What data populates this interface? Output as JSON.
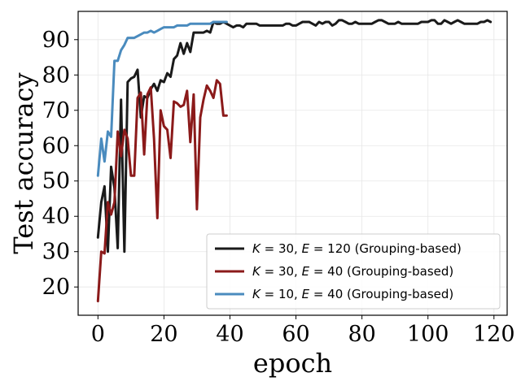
{
  "chart_data": {
    "type": "line",
    "title": "",
    "xlabel": "epoch",
    "ylabel": "Test accuracy",
    "xlim": [
      -6,
      124
    ],
    "ylim": [
      12,
      98
    ],
    "xticks": [
      0,
      20,
      40,
      60,
      80,
      100,
      120
    ],
    "yticks": [
      20,
      30,
      40,
      50,
      60,
      70,
      80,
      90
    ],
    "grid": true,
    "legend_position": "bottom-right",
    "series": [
      {
        "name": "K = 30, E = 120 (Grouping-based)",
        "legend_parts": [
          "K",
          " = 30, ",
          "E",
          " = 120 (Grouping-based)"
        ],
        "color": "#1a1a1a",
        "x": [
          0,
          1,
          2,
          3,
          4,
          5,
          6,
          7,
          8,
          9,
          10,
          11,
          12,
          13,
          14,
          15,
          16,
          17,
          18,
          19,
          20,
          21,
          22,
          23,
          24,
          25,
          26,
          27,
          28,
          29,
          30,
          31,
          32,
          33,
          34,
          35,
          36,
          37,
          38,
          39,
          40,
          41,
          42,
          43,
          44,
          45,
          46,
          47,
          48,
          49,
          50,
          51,
          52,
          53,
          54,
          55,
          56,
          57,
          58,
          59,
          60,
          61,
          62,
          63,
          64,
          65,
          66,
          67,
          68,
          69,
          70,
          71,
          72,
          73,
          74,
          75,
          76,
          77,
          78,
          79,
          80,
          81,
          82,
          83,
          84,
          85,
          86,
          87,
          88,
          89,
          90,
          91,
          92,
          93,
          94,
          95,
          96,
          97,
          98,
          99,
          100,
          101,
          102,
          103,
          104,
          105,
          106,
          107,
          108,
          109,
          110,
          111,
          112,
          113,
          114,
          115,
          116,
          117,
          118,
          119
        ],
        "y": [
          34,
          44,
          48.5,
          30,
          54,
          48,
          31,
          73,
          30,
          78,
          79,
          79.5,
          81.5,
          68,
          74,
          73.5,
          76,
          77.5,
          75.5,
          78.5,
          78,
          80.5,
          79.5,
          84.5,
          85.5,
          89,
          86,
          89,
          86.5,
          92,
          92,
          92,
          92,
          92.5,
          92,
          95,
          94.5,
          94.5,
          95,
          94.5,
          94,
          93.5,
          94,
          94,
          93.5,
          94.5,
          94.5,
          94.5,
          94.5,
          94,
          94,
          94,
          94,
          94,
          94,
          94,
          94,
          94.5,
          94.5,
          94,
          94,
          94.5,
          95,
          95,
          95,
          94.5,
          94,
          95,
          94.5,
          95,
          95,
          94,
          94.5,
          95.5,
          95.5,
          95,
          94.5,
          94.5,
          95,
          94.5,
          94.5,
          94.5,
          94.5,
          94.5,
          95,
          95.5,
          95.5,
          95,
          94.5,
          94.5,
          94.5,
          95,
          94.5,
          94.5,
          94.5,
          94.5,
          94.5,
          94.5,
          95,
          95,
          95,
          95.5,
          95.5,
          94.5,
          94.5,
          95.5,
          95,
          94.5,
          95,
          95.5,
          95,
          94.5,
          94.5,
          94.5,
          94.5,
          94.5,
          95,
          95,
          95.5,
          95
        ]
      },
      {
        "name": "K = 30, E = 40 (Grouping-based)",
        "legend_parts": [
          "K",
          " = 30, ",
          "E",
          " = 40 (Grouping-based)"
        ],
        "color": "#8b1a1a",
        "x": [
          0,
          1,
          2,
          3,
          4,
          5,
          6,
          7,
          8,
          9,
          10,
          11,
          12,
          13,
          14,
          15,
          16,
          17,
          18,
          19,
          20,
          21,
          22,
          23,
          24,
          25,
          26,
          27,
          28,
          29,
          30,
          31,
          32,
          33,
          34,
          35,
          36,
          37,
          38,
          39
        ],
        "y": [
          16,
          30,
          29.5,
          44,
          40.5,
          44,
          64,
          57,
          64.5,
          62,
          51.5,
          51.5,
          73.5,
          75,
          57.5,
          74.5,
          76.5,
          62,
          39.5,
          70,
          65.5,
          64.5,
          56.5,
          72.5,
          72,
          71,
          71.5,
          75.5,
          61,
          74.5,
          42,
          68,
          73,
          77,
          75.5,
          73.5,
          78.5,
          77.5,
          68.5,
          68.5
        ]
      },
      {
        "name": "K = 10, E = 40 (Grouping-based)",
        "legend_parts": [
          "K",
          " = 10, ",
          "E",
          " = 40 (Grouping-based)"
        ],
        "color": "#4a8bbe",
        "x": [
          0,
          1,
          2,
          3,
          4,
          5,
          6,
          7,
          8,
          9,
          10,
          11,
          12,
          13,
          14,
          15,
          16,
          17,
          18,
          19,
          20,
          21,
          22,
          23,
          24,
          25,
          26,
          27,
          28,
          29,
          30,
          31,
          32,
          33,
          34,
          35,
          36,
          37,
          38,
          39
        ],
        "y": [
          51.5,
          62,
          55.5,
          64,
          62.5,
          84,
          84,
          87,
          88.5,
          90.5,
          90.5,
          90.5,
          91,
          91.5,
          92,
          92,
          92.5,
          92,
          92.5,
          93,
          93.5,
          93.5,
          93.5,
          93.5,
          94,
          94,
          94,
          94,
          94.5,
          94.5,
          94.5,
          94.5,
          94.5,
          94.5,
          94.5,
          95,
          95,
          95,
          95,
          95
        ]
      }
    ]
  }
}
